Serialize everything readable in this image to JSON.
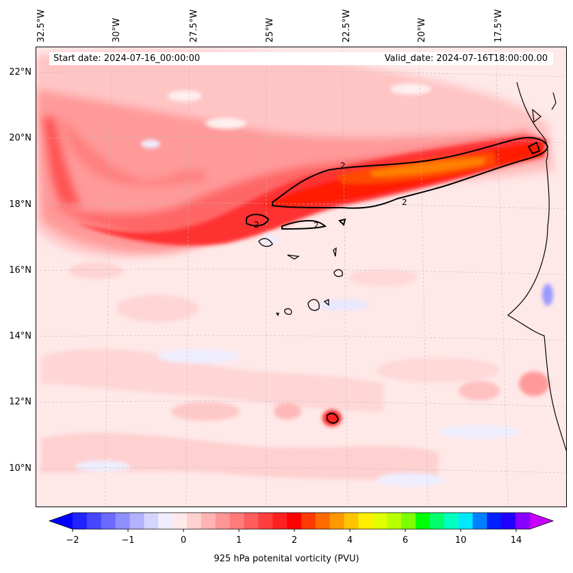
{
  "map": {
    "start_date": "Start date: 2024-07-16_00:00:00",
    "valid_date": "Valid_date: 2024-07-16T18:00:00.00",
    "contour_level_label": "2",
    "lon_labels": [
      "32.5°W",
      "30°W",
      "27.5°W",
      "25°W",
      "22.5°W",
      "20°W",
      "17.5°W"
    ],
    "lat_labels": [
      "22°N",
      "20°N",
      "18°N",
      "16°N",
      "14°N",
      "12°N",
      "10°N"
    ]
  },
  "colorbar": {
    "title": "925 hPa potenital vorticity (PVU)",
    "ticks": [
      "−2",
      "−1",
      "0",
      "1",
      "2",
      "4",
      "6",
      "10",
      "14"
    ],
    "colors": [
      "#0000ff",
      "#2222ff",
      "#4646ff",
      "#6a6aff",
      "#8e8eff",
      "#b2b2ff",
      "#d4d4ff",
      "#eeeeff",
      "#ffe8e8",
      "#ffd0d0",
      "#ffb4b4",
      "#ff9696",
      "#ff7a7a",
      "#ff5c5c",
      "#ff3e3e",
      "#ff2020",
      "#ff0000",
      "#ff3a00",
      "#ff6a00",
      "#ff9800",
      "#ffc400",
      "#ffee00",
      "#e2ff00",
      "#b8ff00",
      "#7cff00",
      "#00ff00",
      "#00ff6a",
      "#00ffc0",
      "#00e8ff",
      "#0080ff",
      "#0020ff",
      "#2000ff",
      "#8800ff",
      "#c400ff"
    ]
  },
  "colors": {
    "background": "#ffe8e8",
    "coast": "#000000",
    "contour": "#000000"
  }
}
